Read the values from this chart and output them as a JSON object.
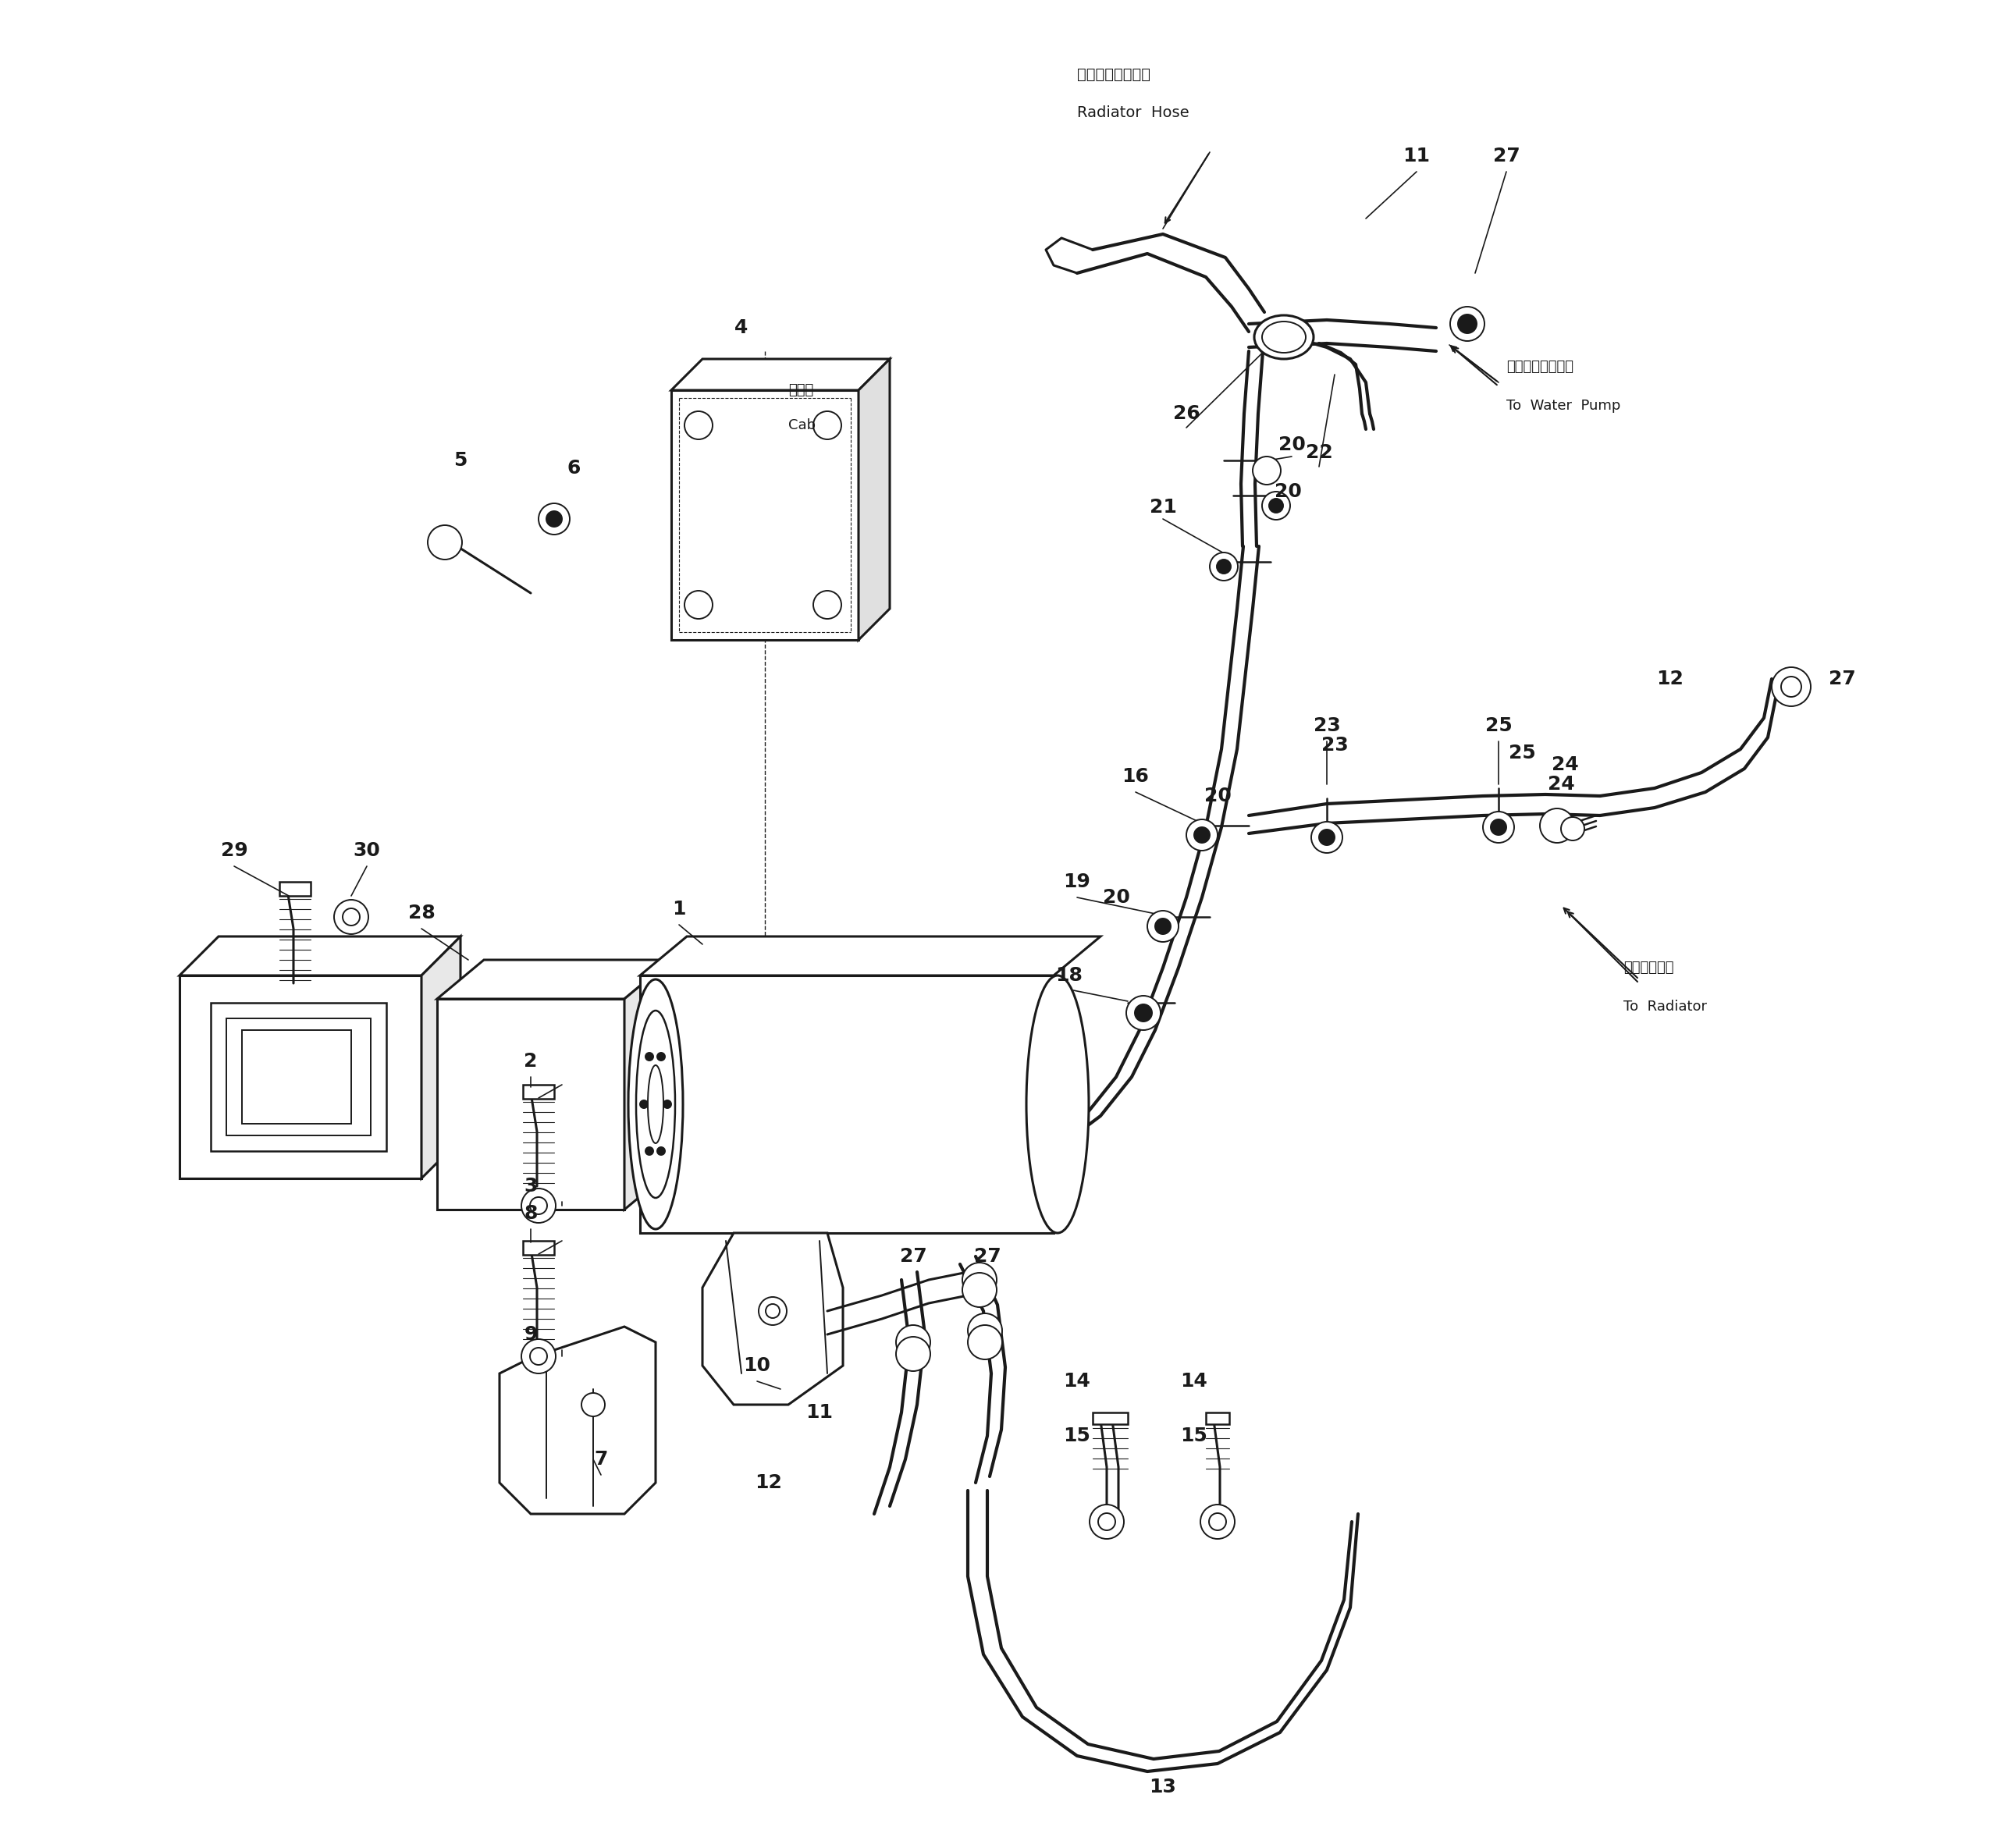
{
  "bg_color": "#ffffff",
  "line_color": "#1a1a1a",
  "fig_width": 25.83,
  "fig_height": 23.54,
  "labels": {
    "radiator_hose_jp": "ラジエータホース",
    "radiator_hose_en": "Radiator  Hose",
    "water_pump_jp": "ウォータポンプへ",
    "water_pump_en": "To  Water  Pump",
    "cab_jp": "キャブ",
    "cab_en": "Cab",
    "radiator_jp": "ラジエータへ",
    "radiator_en": "To  Radiator"
  }
}
